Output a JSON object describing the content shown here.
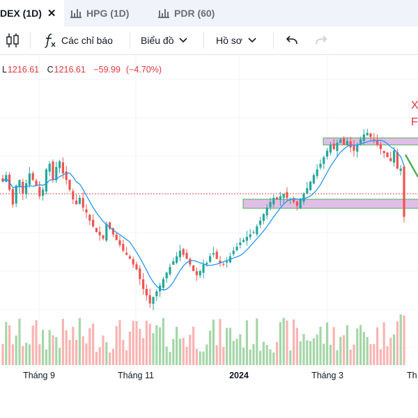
{
  "tabs": [
    {
      "label": "DEX (1D)",
      "close": "✕",
      "active": true
    },
    {
      "label": "HPG (1D)",
      "active": false
    },
    {
      "label": "PDR (60)",
      "active": false
    }
  ],
  "toolbar": {
    "indicators_label": "Các chỉ báo",
    "chart_label": "Biểu đồ",
    "profile_label": "Hồ sơ"
  },
  "legend": {
    "low_key": "L",
    "low_value": "1216.61",
    "close_key": "C",
    "close_value": "1216.61",
    "change": "−59.99",
    "change_pct": "(−4.70%)"
  },
  "corner_annotation": [
    "X",
    "F"
  ],
  "xaxis": {
    "labels": [
      "Tháng 9",
      "Tháng 11",
      "2024",
      "Tháng 3",
      "Th"
    ]
  },
  "colors": {
    "up": "#26a69a",
    "down": "#ef5350",
    "ma": "#2196f3",
    "zone_fill": "#e1bee7",
    "arrow": "#4caf50",
    "text_red": "#e0363f"
  },
  "chart_data": {
    "type": "candlestick",
    "last_close": 1216.61,
    "change": -59.99,
    "change_pct": -4.7,
    "x_labels": [
      "Tháng 9",
      "Tháng 11",
      "2024",
      "Tháng 3"
    ],
    "close_path": [
      1260,
      1268,
      1250,
      1232,
      1255,
      1262,
      1245,
      1258,
      1270,
      1262,
      1255,
      1242,
      1250,
      1275,
      1282,
      1262,
      1278,
      1285,
      1270,
      1262,
      1250,
      1238,
      1232,
      1240,
      1228,
      1222,
      1212,
      1205,
      1198,
      1194,
      1190,
      1208,
      1202,
      1195,
      1188,
      1182,
      1175,
      1170,
      1165,
      1158,
      1152,
      1140,
      1128,
      1120,
      1110,
      1118,
      1125,
      1132,
      1140,
      1148,
      1155,
      1162,
      1168,
      1175,
      1170,
      1165,
      1158,
      1150,
      1145,
      1150,
      1158,
      1160,
      1168,
      1172,
      1165,
      1160,
      1158,
      1162,
      1168,
      1175,
      1180,
      1185,
      1188,
      1192,
      1195,
      1198,
      1205,
      1212,
      1220,
      1228,
      1235,
      1240,
      1238,
      1242,
      1245,
      1240,
      1238,
      1235,
      1230,
      1238,
      1245,
      1252,
      1260,
      1268,
      1275,
      1282,
      1290,
      1298,
      1305,
      1300,
      1308,
      1312,
      1305,
      1310,
      1302,
      1298,
      1305,
      1312,
      1318,
      1320,
      1315,
      1312,
      1305,
      1300,
      1295,
      1290,
      1285,
      1298,
      1276,
      1276,
      1216.61
    ]
  }
}
